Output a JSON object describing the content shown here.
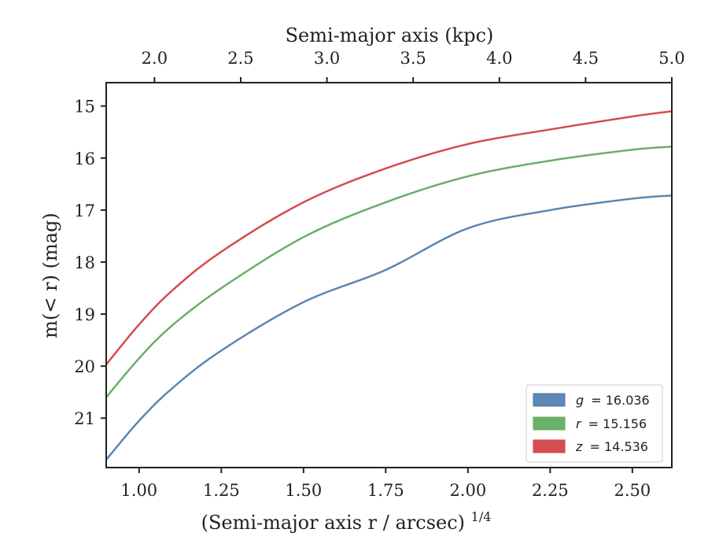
{
  "chart_data": {
    "type": "line",
    "title": "",
    "xlabel": "(Semi-major axis r / arcsec)",
    "xlabel_exponent": "1/4",
    "ylabel": "m(< r) (mag)",
    "top_xlabel": "Semi-major axis (kpc)",
    "xlim": [
      0.9,
      2.62
    ],
    "ylim": [
      21.95,
      14.55
    ],
    "y_inverted": true,
    "top_xlim": [
      1.72,
      5.0
    ],
    "x_ticks": [
      "1.00",
      "1.25",
      "1.50",
      "1.75",
      "2.00",
      "2.25",
      "2.50"
    ],
    "y_ticks": [
      "15",
      "16",
      "17",
      "18",
      "19",
      "20",
      "21"
    ],
    "top_x_ticks": [
      "2.0",
      "2.5",
      "3.0",
      "3.5",
      "4.0",
      "4.5",
      "5.0"
    ],
    "grid": false,
    "legend_position": "lower-right",
    "series": [
      {
        "name": "g = 16.036",
        "legend_symbol": "g",
        "legend_value": "= 16.036",
        "color": "#4b7bab",
        "x": [
          0.9,
          1.0,
          1.1,
          1.25,
          1.5,
          1.75,
          2.0,
          2.25,
          2.5,
          2.62
        ],
        "y": [
          21.8,
          21.05,
          20.43,
          19.7,
          18.77,
          18.15,
          17.35,
          17.0,
          16.78,
          16.72
        ]
      },
      {
        "name": "r = 15.156",
        "legend_symbol": "r",
        "legend_value": "= 15.156",
        "color": "#5da75a",
        "x": [
          0.9,
          1.0,
          1.1,
          1.25,
          1.5,
          1.75,
          2.0,
          2.25,
          2.5,
          2.62
        ],
        "y": [
          20.6,
          19.85,
          19.22,
          18.5,
          17.52,
          16.85,
          16.35,
          16.05,
          15.84,
          15.78
        ]
      },
      {
        "name": "z = 14.536",
        "legend_symbol": "z",
        "legend_value": "= 14.536",
        "color": "#d03c3f",
        "x": [
          0.9,
          1.0,
          1.1,
          1.25,
          1.5,
          1.75,
          2.0,
          2.25,
          2.5,
          2.62
        ],
        "y": [
          19.97,
          19.2,
          18.55,
          17.8,
          16.85,
          16.2,
          15.73,
          15.45,
          15.2,
          15.1
        ]
      }
    ]
  }
}
